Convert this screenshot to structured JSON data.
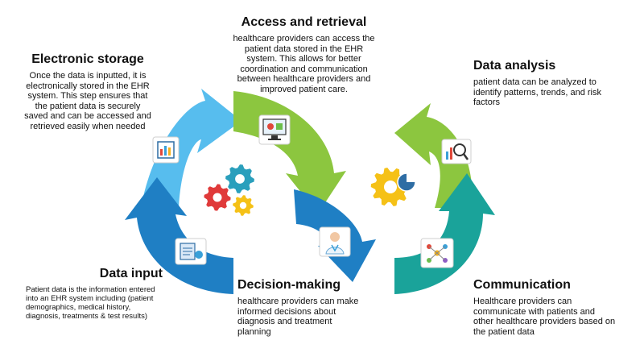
{
  "colors": {
    "electronic_storage": "#57bdee",
    "access_retrieval": "#8cc63f",
    "data_analysis": "#8cc63f",
    "data_input": "#1f7fc4",
    "decision_making": "#1f7fc4",
    "communication": "#1aa39a",
    "gear_teal": "#2a9fbc",
    "gear_red": "#e03a3a",
    "gear_yellow": "#f5c117"
  },
  "icons": {
    "electronic_storage": "tablet-chart-icon",
    "access_retrieval": "monitor-medical-icon",
    "data_analysis": "magnifier-chart-icon",
    "data_input": "medical-records-icon",
    "decision_making": "doctor-icon",
    "communication": "network-people-icon",
    "center_left": "gears-icon",
    "center_right": "gear-pie-chart-icon"
  },
  "steps": {
    "electronic_storage": {
      "title": "Electronic storage",
      "description": "Once the data is inputted, it is electronically stored in the EHR system. This step ensures that the patient data is securely saved and can be accessed and retrieved easily when needed"
    },
    "access_retrieval": {
      "title": "Access and retrieval",
      "description": "healthcare providers can access the patient data stored in the EHR system. This allows for better coordination and communication between healthcare providers and improved patient care."
    },
    "data_analysis": {
      "title": "Data analysis",
      "description": "patient data can be analyzed to identify patterns, trends, and risk factors"
    },
    "data_input": {
      "title": "Data input",
      "description": "Patient data is the information entered into an EHR system including (patient demographics, medical history, diagnosis, treatments & test results)"
    },
    "decision_making": {
      "title": "Decision-making",
      "description": "healthcare providers can make informed decisions about diagnosis and treatment planning"
    },
    "communication": {
      "title": "Communication",
      "description": "Healthcare providers can communicate with patients and other healthcare providers based on the patient data"
    }
  }
}
